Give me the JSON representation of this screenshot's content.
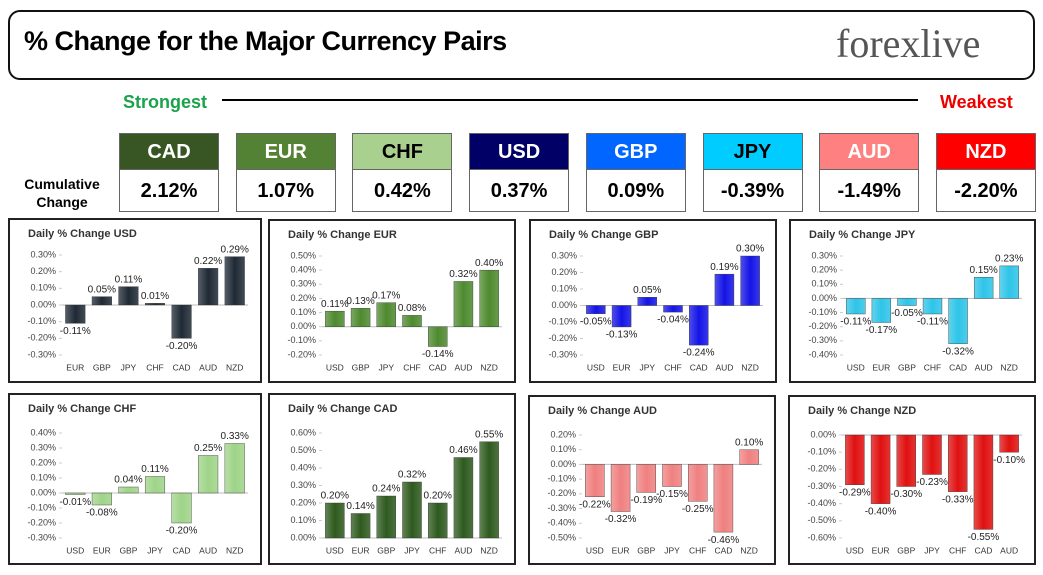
{
  "header": {
    "title": "% Change for the Major Currency Pairs",
    "logo": "forexlive"
  },
  "strength": {
    "strongest": "Strongest",
    "weakest": "Weakest"
  },
  "cumulative": {
    "label": "Cumulative Change",
    "currencies": [
      {
        "name": "CAD",
        "value": "2.12%",
        "color": "#375623",
        "text_color": "#ffffff"
      },
      {
        "name": "EUR",
        "value": "1.07%",
        "color": "#548235",
        "text_color": "#ffffff"
      },
      {
        "name": "CHF",
        "value": "0.42%",
        "color": "#a9d08e",
        "text_color": "#000000"
      },
      {
        "name": "USD",
        "value": "0.37%",
        "color": "#000066",
        "text_color": "#ffffff"
      },
      {
        "name": "GBP",
        "value": "0.09%",
        "color": "#0066ff",
        "text_color": "#ffffff"
      },
      {
        "name": "JPY",
        "value": "-0.39%",
        "color": "#00ccff",
        "text_color": "#000000"
      },
      {
        "name": "AUD",
        "value": "-1.49%",
        "color": "#ff8080",
        "text_color": "#ffffff"
      },
      {
        "name": "NZD",
        "value": "-2.20%",
        "color": "#ff0000",
        "text_color": "#ffffff"
      }
    ]
  },
  "chart_data": [
    {
      "type": "bar",
      "title": "Daily % Change USD",
      "color": "#1f2a36",
      "categories": [
        "EUR",
        "GBP",
        "JPY",
        "CHF",
        "CAD",
        "AUD",
        "NZD"
      ],
      "values": [
        -0.11,
        0.05,
        0.11,
        0.01,
        -0.2,
        0.22,
        0.29
      ],
      "value_labels": [
        "-0.11%",
        "0.05%",
        "0.11%",
        "0.01%",
        "-0.20%",
        "0.22%",
        "0.29%"
      ],
      "ylim": [
        -0.3,
        0.3
      ],
      "yticks": [
        {
          "value": -0.3,
          "label": "-0.30%"
        },
        {
          "value": -0.2,
          "label": "-0.20%"
        },
        {
          "value": -0.1,
          "label": "-0.10%"
        },
        {
          "value": 0,
          "label": "0.00%"
        },
        {
          "value": 0.1,
          "label": "0.10%"
        },
        {
          "value": 0.2,
          "label": "0.20%"
        },
        {
          "value": 0.3,
          "label": "0.30%"
        }
      ]
    },
    {
      "type": "bar",
      "title": "Daily % Change EUR",
      "color": "#4e8a2e",
      "categories": [
        "USD",
        "GBP",
        "JPY",
        "CHF",
        "CAD",
        "AUD",
        "NZD"
      ],
      "values": [
        0.11,
        0.13,
        0.17,
        0.08,
        -0.14,
        0.32,
        0.4
      ],
      "value_labels": [
        "0.11%",
        "0.13%",
        "0.17%",
        "0.08%",
        "-0.14%",
        "0.32%",
        "0.40%"
      ],
      "ylim": [
        -0.2,
        0.5
      ],
      "yticks": [
        {
          "value": -0.2,
          "label": "-0.20%"
        },
        {
          "value": -0.1,
          "label": "-0.10%"
        },
        {
          "value": 0,
          "label": "0.00%"
        },
        {
          "value": 0.1,
          "label": "0.10%"
        },
        {
          "value": 0.2,
          "label": "0.20%"
        },
        {
          "value": 0.3,
          "label": "0.30%"
        },
        {
          "value": 0.4,
          "label": "0.40%"
        },
        {
          "value": 0.5,
          "label": "0.50%"
        }
      ]
    },
    {
      "type": "bar",
      "title": "Daily % Change GBP",
      "color": "#1414e6",
      "categories": [
        "USD",
        "EUR",
        "JPY",
        "CHF",
        "CAD",
        "AUD",
        "NZD"
      ],
      "values": [
        -0.05,
        -0.13,
        0.05,
        -0.04,
        -0.24,
        0.19,
        0.3
      ],
      "value_labels": [
        "-0.05%",
        "-0.13%",
        "0.05%",
        "-0.04%",
        "-0.24%",
        "0.19%",
        "0.30%"
      ],
      "ylim": [
        -0.3,
        0.3
      ],
      "yticks": [
        {
          "value": -0.3,
          "label": "-0.30%"
        },
        {
          "value": -0.2,
          "label": "-0.20%"
        },
        {
          "value": -0.1,
          "label": "-0.10%"
        },
        {
          "value": 0,
          "label": "0.00%"
        },
        {
          "value": 0.1,
          "label": "0.10%"
        },
        {
          "value": 0.2,
          "label": "0.20%"
        },
        {
          "value": 0.3,
          "label": "0.30%"
        }
      ]
    },
    {
      "type": "bar",
      "title": "Daily % Change JPY",
      "color": "#2ec4e8",
      "categories": [
        "USD",
        "EUR",
        "GBP",
        "CHF",
        "CAD",
        "AUD",
        "NZD"
      ],
      "values": [
        -0.11,
        -0.17,
        -0.05,
        -0.11,
        -0.32,
        0.15,
        0.23
      ],
      "value_labels": [
        "-0.11%",
        "-0.17%",
        "-0.05%",
        "-0.11%",
        "-0.32%",
        "0.15%",
        "0.23%"
      ],
      "ylim": [
        -0.4,
        0.3
      ],
      "yticks": [
        {
          "value": -0.4,
          "label": "-0.40%"
        },
        {
          "value": -0.3,
          "label": "-0.30%"
        },
        {
          "value": -0.2,
          "label": "-0.20%"
        },
        {
          "value": -0.1,
          "label": "-0.10%"
        },
        {
          "value": 0,
          "label": "0.00%"
        },
        {
          "value": 0.1,
          "label": "0.10%"
        },
        {
          "value": 0.2,
          "label": "0.20%"
        },
        {
          "value": 0.3,
          "label": "0.30%"
        }
      ]
    },
    {
      "type": "bar",
      "title": "Daily % Change CHF",
      "color": "#9fd488",
      "categories": [
        "USD",
        "EUR",
        "GBP",
        "JPY",
        "CAD",
        "AUD",
        "NZD"
      ],
      "values": [
        -0.01,
        -0.08,
        0.04,
        0.11,
        -0.2,
        0.25,
        0.33
      ],
      "value_labels": [
        "-0.01%",
        "-0.08%",
        "0.04%",
        "0.11%",
        "-0.20%",
        "0.25%",
        "0.33%"
      ],
      "ylim": [
        -0.3,
        0.4
      ],
      "yticks": [
        {
          "value": -0.3,
          "label": "-0.30%"
        },
        {
          "value": -0.2,
          "label": "-0.20%"
        },
        {
          "value": -0.1,
          "label": "-0.10%"
        },
        {
          "value": 0,
          "label": "0.00%"
        },
        {
          "value": 0.1,
          "label": "0.10%"
        },
        {
          "value": 0.2,
          "label": "0.20%"
        },
        {
          "value": 0.3,
          "label": "0.30%"
        },
        {
          "value": 0.4,
          "label": "0.40%"
        }
      ]
    },
    {
      "type": "bar",
      "title": "Daily % Change CAD",
      "color": "#2e5a1e",
      "categories": [
        "USD",
        "EUR",
        "GBP",
        "JPY",
        "CHF",
        "AUD",
        "NZD"
      ],
      "values": [
        0.2,
        0.14,
        0.24,
        0.32,
        0.2,
        0.46,
        0.55
      ],
      "value_labels": [
        "0.20%",
        "0.14%",
        "0.24%",
        "0.32%",
        "0.20%",
        "0.46%",
        "0.55%"
      ],
      "ylim": [
        0,
        0.6
      ],
      "yticks": [
        {
          "value": 0,
          "label": "0.00%"
        },
        {
          "value": 0.1,
          "label": "0.10%"
        },
        {
          "value": 0.2,
          "label": "0.20%"
        },
        {
          "value": 0.3,
          "label": "0.30%"
        },
        {
          "value": 0.4,
          "label": "0.40%"
        },
        {
          "value": 0.5,
          "label": "0.50%"
        },
        {
          "value": 0.6,
          "label": "0.60%"
        }
      ]
    },
    {
      "type": "bar",
      "title": "Daily % Change AUD",
      "color": "#f08080",
      "categories": [
        "USD",
        "EUR",
        "GBP",
        "JPY",
        "CHF",
        "CAD",
        "NZD"
      ],
      "values": [
        -0.22,
        -0.32,
        -0.19,
        -0.15,
        -0.25,
        -0.46,
        0.1
      ],
      "value_labels": [
        "-0.22%",
        "-0.32%",
        "-0.19%",
        "-0.15%",
        "-0.25%",
        "-0.46%",
        "0.10%"
      ],
      "ylim": [
        -0.5,
        0.2
      ],
      "yticks": [
        {
          "value": -0.5,
          "label": "-0.50%"
        },
        {
          "value": -0.4,
          "label": "-0.40%"
        },
        {
          "value": -0.3,
          "label": "-0.30%"
        },
        {
          "value": -0.2,
          "label": "-0.20%"
        },
        {
          "value": -0.1,
          "label": "-0.10%"
        },
        {
          "value": 0,
          "label": "0.00%"
        },
        {
          "value": 0.1,
          "label": "0.10%"
        },
        {
          "value": 0.2,
          "label": "0.20%"
        }
      ]
    },
    {
      "type": "bar",
      "title": "Daily % Change NZD",
      "color": "#e01010",
      "categories": [
        "USD",
        "EUR",
        "GBP",
        "JPY",
        "CHF",
        "CAD",
        "AUD"
      ],
      "values": [
        -0.29,
        -0.4,
        -0.3,
        -0.23,
        -0.33,
        -0.55,
        -0.1
      ],
      "value_labels": [
        "-0.29%",
        "-0.40%",
        "-0.30%",
        "-0.23%",
        "-0.33%",
        "-0.55%",
        "-0.10%"
      ],
      "ylim": [
        -0.6,
        0
      ],
      "yticks": [
        {
          "value": -0.6,
          "label": "-0.60%"
        },
        {
          "value": -0.5,
          "label": "-0.50%"
        },
        {
          "value": -0.4,
          "label": "-0.40%"
        },
        {
          "value": -0.3,
          "label": "-0.30%"
        },
        {
          "value": -0.2,
          "label": "-0.20%"
        },
        {
          "value": -0.1,
          "label": "-0.10%"
        },
        {
          "value": 0,
          "label": "0.00%"
        }
      ]
    }
  ]
}
